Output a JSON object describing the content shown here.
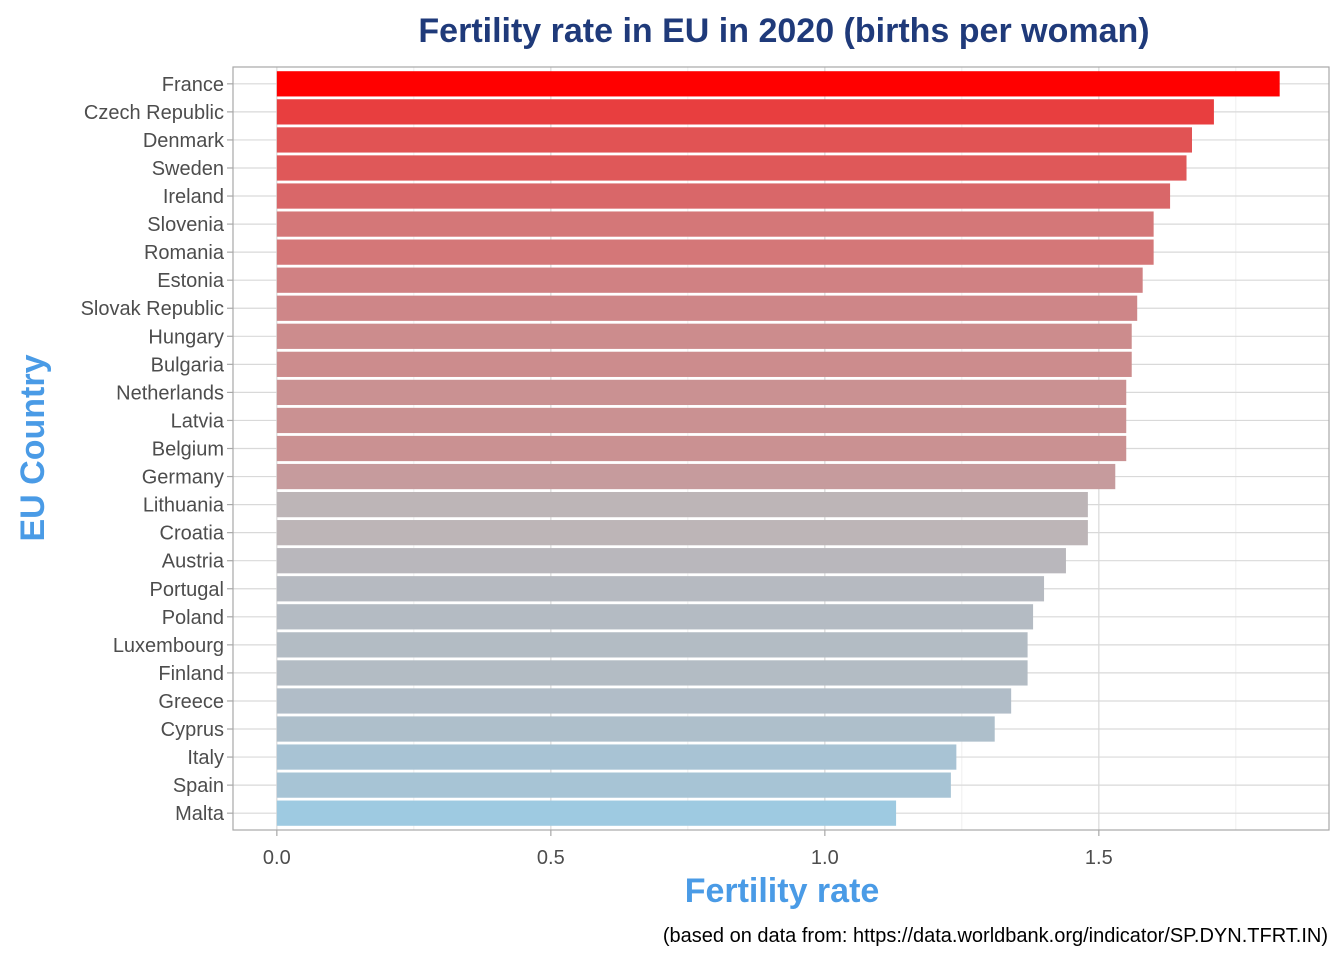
{
  "chart_data": {
    "type": "bar",
    "orientation": "horizontal",
    "title": "Fertility rate in EU in 2020 (births per woman)",
    "xlabel": "Fertility rate",
    "ylabel": "EU Country",
    "caption": "(based on data from: https://data.worldbank.org/indicator/SP.DYN.TFRT.IN)",
    "xlim": [
      -0.08,
      1.92
    ],
    "x_ticks": [
      0.0,
      0.5,
      1.0,
      1.5
    ],
    "x_tick_labels": [
      "0.0",
      "0.5",
      "1.0",
      "1.5"
    ],
    "grid": true,
    "color_scale": {
      "low": "#9ecae1",
      "mid": "#bdb5b7",
      "high": "#ff0000"
    },
    "categories": [
      "France",
      "Czech Republic",
      "Denmark",
      "Sweden",
      "Ireland",
      "Slovenia",
      "Romania",
      "Estonia",
      "Slovak Republic",
      "Hungary",
      "Bulgaria",
      "Netherlands",
      "Latvia",
      "Belgium",
      "Germany",
      "Lithuania",
      "Croatia",
      "Austria",
      "Portugal",
      "Poland",
      "Luxembourg",
      "Finland",
      "Greece",
      "Cyprus",
      "Italy",
      "Spain",
      "Malta"
    ],
    "values": [
      1.83,
      1.71,
      1.67,
      1.66,
      1.63,
      1.6,
      1.6,
      1.58,
      1.57,
      1.56,
      1.56,
      1.55,
      1.55,
      1.55,
      1.53,
      1.48,
      1.48,
      1.44,
      1.4,
      1.38,
      1.37,
      1.37,
      1.34,
      1.31,
      1.24,
      1.23,
      1.13
    ]
  }
}
